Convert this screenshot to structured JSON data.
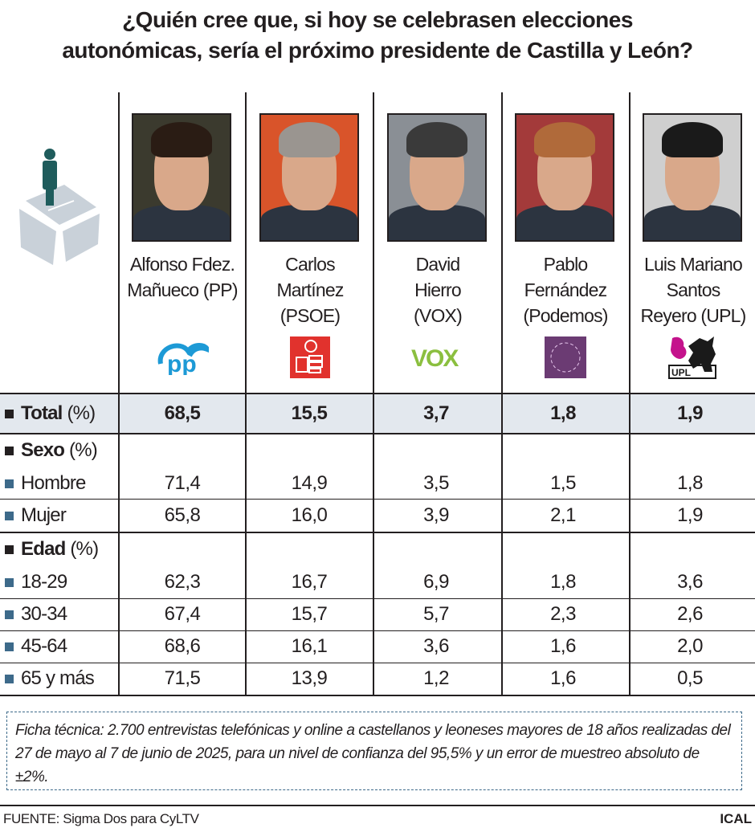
{
  "title": [
    "¿Quién cree que, si hoy se celebrasen elecciones",
    "autonómicas, sería el próximo presidente de Castilla y León?"
  ],
  "candidates": [
    {
      "name": [
        "Alfonso Fdez.",
        "Mañueco (PP)"
      ],
      "party": "PP",
      "logo": "pp-logo",
      "color": "#1d9ad6",
      "photo_bg": "#3b3a2e",
      "hair": "#2a1c14"
    },
    {
      "name": [
        "Carlos",
        "Martínez",
        "(PSOE)"
      ],
      "party": "PSOE",
      "logo": "psoe-logo",
      "color": "#e1322d",
      "photo_bg": "#d9542a",
      "hair": "#9a9590"
    },
    {
      "name": [
        "David",
        "Hierro",
        "(VOX)"
      ],
      "party": "VOX",
      "logo": "vox-logo",
      "color": "#8bbf3f",
      "photo_bg": "#8a8f95",
      "hair": "#3a3a3a"
    },
    {
      "name": [
        "Pablo",
        "Fernández",
        "(Podemos)"
      ],
      "party": "Podemos",
      "logo": "podemos-logo",
      "color": "#6b3b73",
      "photo_bg": "#a33a3a",
      "hair": "#b06a3a"
    },
    {
      "name": [
        "Luis Mariano",
        "Santos",
        "Reyero (UPL)"
      ],
      "party": "UPL",
      "logo": "upl-logo",
      "color": "#c4138c",
      "photo_bg": "#cfcfcf",
      "hair": "#1a1a1a"
    }
  ],
  "chart_data": {
    "type": "table",
    "title": "¿Quién cree que, si hoy se celebrasen elecciones autonómicas, sería el próximo presidente de Castilla y León?",
    "columns": [
      "Alfonso Fdez. Mañueco (PP)",
      "Carlos Martínez (PSOE)",
      "David Hierro (VOX)",
      "Pablo Fernández (Podemos)",
      "Luis Mariano Santos Reyero (UPL)"
    ],
    "rows": [
      {
        "kind": "total",
        "label": "Total",
        "unit": "(%)",
        "values": [
          "68,5",
          "15,5",
          "3,7",
          "1,8",
          "1,9"
        ]
      },
      {
        "kind": "group",
        "label": "Sexo",
        "unit": "(%)"
      },
      {
        "kind": "item",
        "label": "Hombre",
        "values": [
          "71,4",
          "14,9",
          "3,5",
          "1,5",
          "1,8"
        ]
      },
      {
        "kind": "item",
        "label": "Mujer",
        "values": [
          "65,8",
          "16,0",
          "3,9",
          "2,1",
          "1,9"
        ]
      },
      {
        "kind": "group",
        "label": "Edad",
        "unit": "(%)"
      },
      {
        "kind": "item",
        "label": "18-29",
        "values": [
          "62,3",
          "16,7",
          "6,9",
          "1,8",
          "3,6"
        ]
      },
      {
        "kind": "item",
        "label": "30-34",
        "values": [
          "67,4",
          "15,7",
          "5,7",
          "2,3",
          "2,6"
        ]
      },
      {
        "kind": "item",
        "label": "45-64",
        "values": [
          "68,6",
          "16,1",
          "3,6",
          "1,6",
          "2,0"
        ]
      },
      {
        "kind": "item",
        "label": "65 y más",
        "values": [
          "71,5",
          "13,9",
          "1,2",
          "1,6",
          "0,5"
        ]
      }
    ]
  },
  "colors": {
    "total_bg": "#e3e8ee",
    "bullet_sub": "#3d6a8a",
    "ballot_box": "#c9d1d9",
    "voter": "#1f5c5c"
  },
  "icons": {
    "header": "ballot-box-voter-icon"
  },
  "footnote": "Ficha técnica: 2.700 entrevistas telefónicas y online a castellanos y leoneses mayores de 18 años realizadas del 27 de mayo al 7 de junio de 2025, para un nivel de confianza del 95,5% y un error de muestreo absoluto de ±2%.",
  "source": "FUENTE: Sigma Dos para CyLTV",
  "brand": "ICAL"
}
